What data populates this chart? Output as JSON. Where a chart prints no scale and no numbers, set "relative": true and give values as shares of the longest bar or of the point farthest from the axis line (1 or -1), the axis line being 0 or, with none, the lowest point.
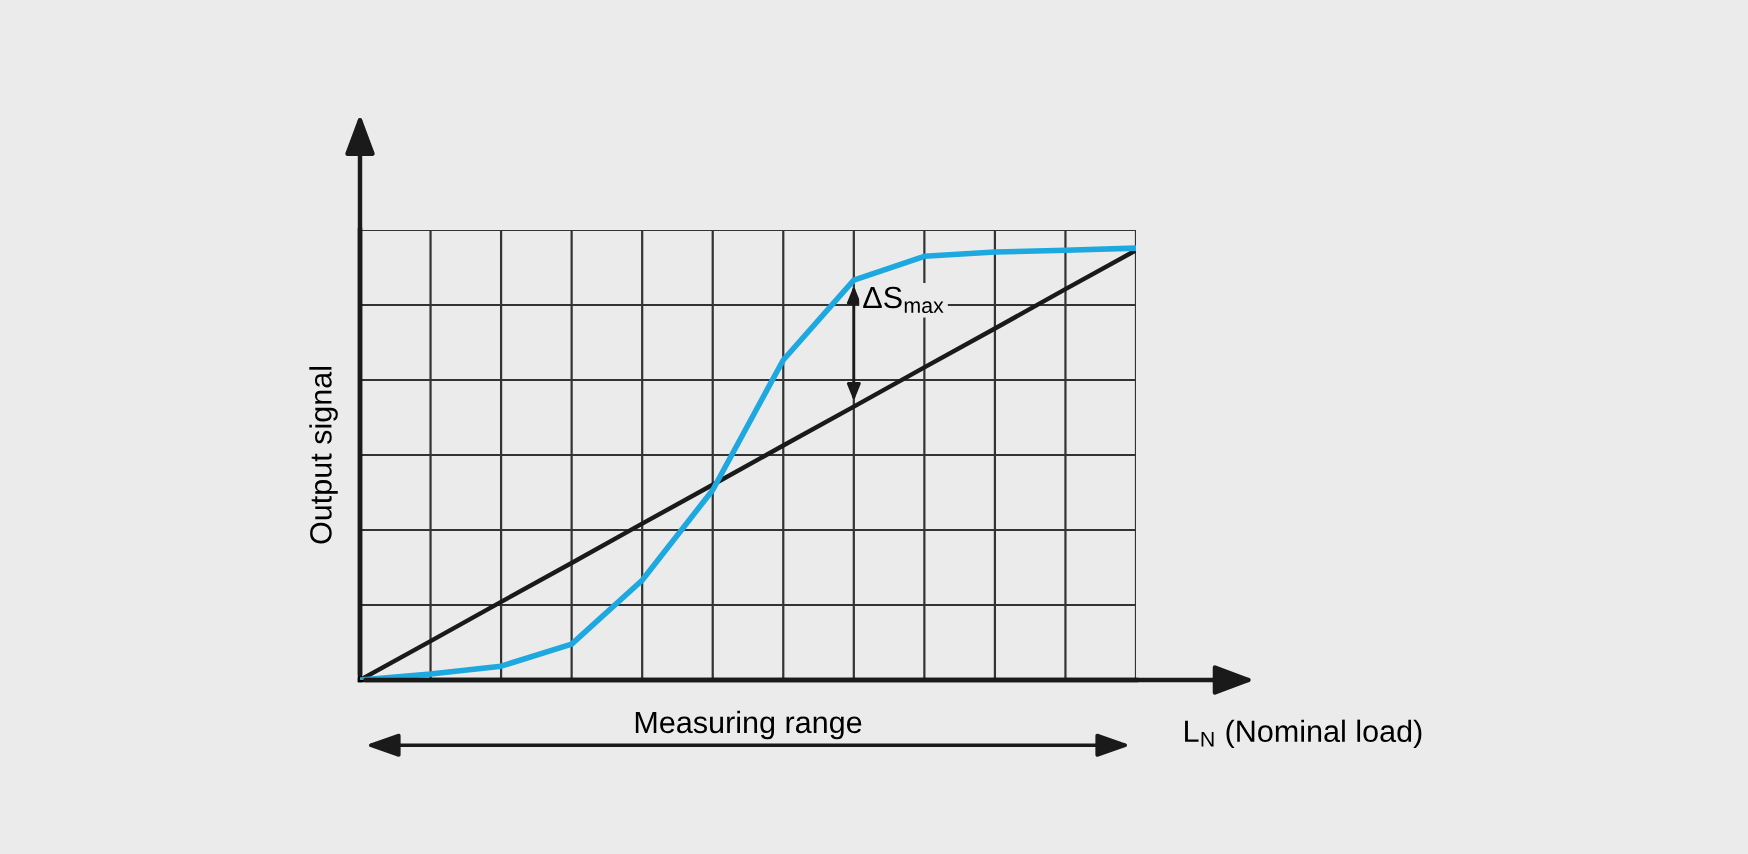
{
  "chart_data": {
    "type": "line",
    "relative": true,
    "ylabel": "Output signal",
    "categories": [
      null,
      null,
      null,
      null,
      null,
      null,
      null,
      null,
      null,
      null,
      null,
      null
    ],
    "series": [
      {
        "color": "#1a1a1a",
        "values": [
          0,
          0.09,
          0.181,
          0.271,
          0.362,
          0.452,
          0.543,
          0.633,
          0.724,
          0.814,
          0.905,
          0.995
        ]
      },
      {
        "color": "#1ea8e0",
        "values": [
          0,
          0.014,
          0.032,
          0.083,
          0.231,
          0.44,
          0.741,
          0.926,
          0.981,
          0.991,
          0.995,
          1.0
        ]
      }
    ],
    "annotations": [
      "ΔS$_{max}$",
      "Measuring range",
      "L$_{N}$ (Nominal load)"
    ],
    "grid": true,
    "tick_labels": false,
    "line_style": "solid",
    "marker": "none"
  }
}
